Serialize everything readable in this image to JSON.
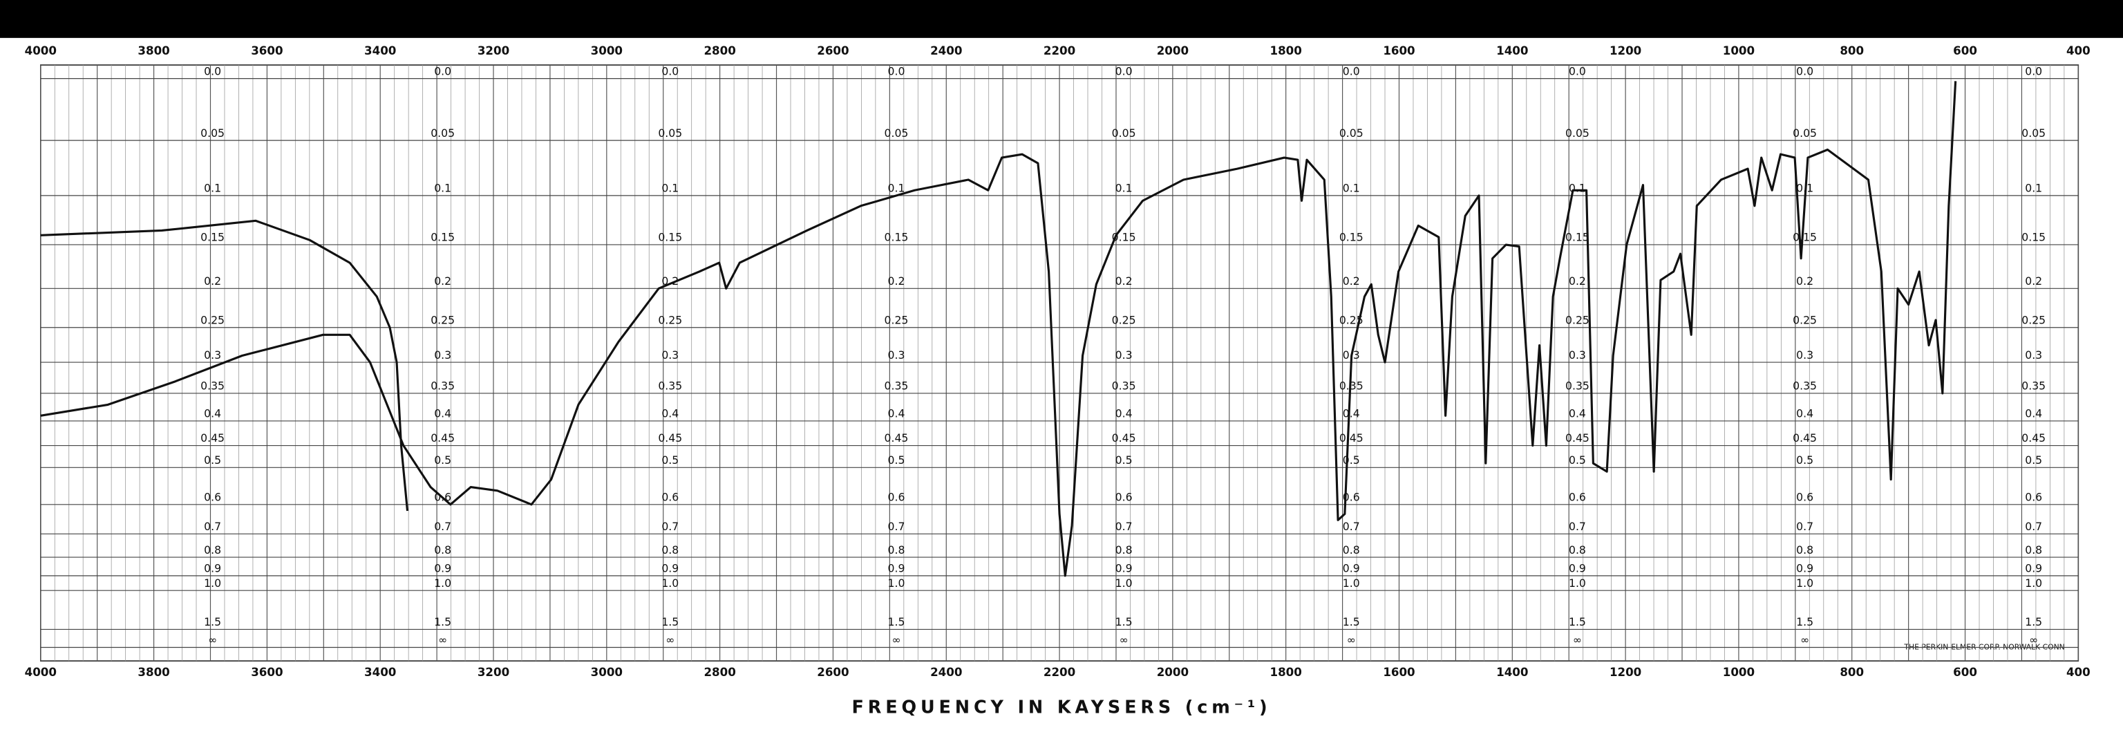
{
  "chart_data": {
    "type": "line",
    "x_label": "FREQUENCY IN KAYSERS (cm⁻¹)",
    "footer": "THE PERKIN-ELMER CORP. NORWALK CONN",
    "xlim": [
      4000,
      400
    ],
    "xticks": [
      4000,
      3800,
      3600,
      3400,
      3200,
      3000,
      2800,
      2600,
      2400,
      2200,
      2000,
      1800,
      1600,
      1400,
      1200,
      1000,
      800,
      600,
      400
    ],
    "yscale": "absorbance",
    "ylim": [
      0,
      null
    ],
    "yticks": [
      {
        "value": 0,
        "label": "0.0"
      },
      0.05,
      0.1,
      0.15,
      0.2,
      0.25,
      0.3,
      0.35,
      0.4,
      0.45,
      0.5,
      0.6,
      0.7,
      0.8,
      0.9,
      {
        "value": 1,
        "label": "1.0"
      },
      1.5,
      {
        "value": null,
        "label": "∞"
      }
    ],
    "grid": true,
    "series": [
      {
        "color": "#111111",
        "x": [
          4000,
          3786,
          3620,
          3525,
          3454,
          3406,
          3383,
          3371,
          3363,
          3352
        ],
        "values": [
          0.14,
          0.135,
          0.125,
          0.145,
          0.17,
          0.21,
          0.25,
          0.3,
          0.45,
          0.62
        ]
      },
      {
        "color": "#111111",
        "x": [
          4000,
          3881,
          3762,
          3644,
          3501,
          3454,
          3418,
          3359,
          3311,
          3276,
          3240,
          3193,
          3133,
          3098,
          3050,
          2979,
          2908,
          2836,
          2801,
          2789,
          2765,
          2646,
          2551,
          2456,
          2361,
          2326,
          2302,
          2266,
          2238,
          2219,
          2200,
          2190,
          2178,
          2159,
          2135,
          2100,
          2053,
          1981,
          1886,
          1803,
          1779,
          1772,
          1763,
          1732,
          1720,
          1708,
          1696,
          1684,
          1661,
          1649,
          1637,
          1625,
          1601,
          1566,
          1530,
          1518,
          1506,
          1483,
          1459,
          1447,
          1435,
          1411,
          1388,
          1364,
          1352,
          1340,
          1328,
          1316,
          1293,
          1269,
          1257,
          1233,
          1222,
          1198,
          1169,
          1150,
          1138,
          1115,
          1103,
          1084,
          1074,
          1031,
          984,
          972,
          960,
          941,
          926,
          901,
          890,
          878,
          843,
          771,
          748,
          731,
          719,
          700,
          681,
          664,
          652,
          640,
          629,
          617
        ],
        "values": [
          0.39,
          0.37,
          0.33,
          0.29,
          0.26,
          0.26,
          0.3,
          0.45,
          0.55,
          0.6,
          0.55,
          0.56,
          0.6,
          0.53,
          0.37,
          0.27,
          0.2,
          0.18,
          0.17,
          0.2,
          0.17,
          0.135,
          0.11,
          0.095,
          0.085,
          0.095,
          0.065,
          0.062,
          0.07,
          0.18,
          0.63,
          0.9,
          0.67,
          0.29,
          0.195,
          0.14,
          0.105,
          0.085,
          0.075,
          0.065,
          0.067,
          0.105,
          0.067,
          0.085,
          0.21,
          0.65,
          0.63,
          0.29,
          0.21,
          0.195,
          0.26,
          0.3,
          0.18,
          0.13,
          0.142,
          0.39,
          0.21,
          0.12,
          0.1,
          0.49,
          0.165,
          0.15,
          0.152,
          0.45,
          0.275,
          0.45,
          0.21,
          0.165,
          0.095,
          0.095,
          0.49,
          0.51,
          0.29,
          0.15,
          0.09,
          0.51,
          0.19,
          0.18,
          0.16,
          0.26,
          0.11,
          0.085,
          0.075,
          0.11,
          0.065,
          0.095,
          0.062,
          0.065,
          0.165,
          0.065,
          0.058,
          0.085,
          0.18,
          0.53,
          0.2,
          0.22,
          0.18,
          0.275,
          0.24,
          0.35,
          0.11,
          0.002
        ]
      }
    ]
  }
}
